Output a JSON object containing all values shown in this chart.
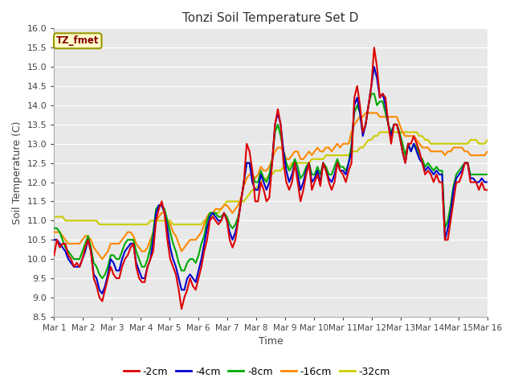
{
  "title": "Tonzi Soil Temperature Set D",
  "xlabel": "Time",
  "ylabel": "Soil Temperature (C)",
  "ylim": [
    8.5,
    16.0
  ],
  "yticks": [
    8.5,
    9.0,
    9.5,
    10.0,
    10.5,
    11.0,
    11.5,
    12.0,
    12.5,
    13.0,
    13.5,
    14.0,
    14.5,
    15.0,
    15.5,
    16.0
  ],
  "xtick_labels": [
    "Mar 1",
    "Mar 2",
    "Mar 3",
    "Mar 4",
    "Mar 5",
    "Mar 6",
    "Mar 7",
    "Mar 8",
    "Mar 9",
    "Mar 10",
    "Mar 11",
    "Mar 12",
    "Mar 13",
    "Mar 14",
    "Mar 15",
    "Mar 16"
  ],
  "legend_label": "TZ_fmet",
  "legend_box_facecolor": "#ffffcc",
  "legend_box_edgecolor": "#999900",
  "legend_text_color": "#880000",
  "fig_facecolor": "#ffffff",
  "plot_facecolor": "#e8e8e8",
  "grid_color": "#ffffff",
  "series_colors": {
    "-2cm": "#dd0000",
    "-4cm": "#0000cc",
    "-8cm": "#00aa00",
    "-16cm": "#ff8800",
    "-32cm": "#cccc00"
  },
  "t_days": 15,
  "data_2cm": [
    10.1,
    10.5,
    10.3,
    10.4,
    10.4,
    10.1,
    10.0,
    9.8,
    9.9,
    9.8,
    10.0,
    10.3,
    10.5,
    10.2,
    9.5,
    9.3,
    9.0,
    8.9,
    9.2,
    9.5,
    9.8,
    9.6,
    9.5,
    9.5,
    9.8,
    10.0,
    10.1,
    10.3,
    10.4,
    9.8,
    9.5,
    9.4,
    9.4,
    9.8,
    10.0,
    10.2,
    11.0,
    11.3,
    11.5,
    11.2,
    10.5,
    10.0,
    9.8,
    9.6,
    9.2,
    8.7,
    9.0,
    9.2,
    9.5,
    9.3,
    9.2,
    9.5,
    9.8,
    10.2,
    10.5,
    11.0,
    11.1,
    11.0,
    10.9,
    11.0,
    11.2,
    11.0,
    10.5,
    10.3,
    10.5,
    11.0,
    11.5,
    12.0,
    13.0,
    12.8,
    12.3,
    11.5,
    11.5,
    12.0,
    11.8,
    11.5,
    11.6,
    12.5,
    13.5,
    13.9,
    13.5,
    12.5,
    12.0,
    11.8,
    12.0,
    12.5,
    12.0,
    11.5,
    11.8,
    12.2,
    12.5,
    11.8,
    12.0,
    12.2,
    11.9,
    12.5,
    12.3,
    12.0,
    11.8,
    12.0,
    12.5,
    12.3,
    12.2,
    12.0,
    12.3,
    12.5,
    14.2,
    14.5,
    14.0,
    13.3,
    13.5,
    14.0,
    14.5,
    15.5,
    15.0,
    14.2,
    14.3,
    14.2,
    13.5,
    13.0,
    13.5,
    13.5,
    13.2,
    12.8,
    12.5,
    13.0,
    13.0,
    13.2,
    13.0,
    12.8,
    12.5,
    12.2,
    12.3,
    12.2,
    12.0,
    12.2,
    12.0,
    12.0,
    10.5,
    10.5,
    11.0,
    11.5,
    12.0,
    12.0,
    12.2,
    12.5,
    12.5,
    12.0,
    12.0,
    12.0,
    11.8,
    12.0,
    11.8,
    11.8
  ],
  "data_4cm": [
    10.5,
    10.5,
    10.4,
    10.3,
    10.2,
    10.0,
    9.9,
    9.8,
    9.8,
    9.8,
    10.0,
    10.2,
    10.5,
    10.2,
    9.6,
    9.5,
    9.2,
    9.1,
    9.3,
    9.6,
    10.0,
    9.9,
    9.7,
    9.7,
    10.0,
    10.2,
    10.3,
    10.4,
    10.4,
    9.9,
    9.7,
    9.5,
    9.5,
    9.8,
    10.0,
    10.5,
    11.2,
    11.4,
    11.4,
    11.2,
    10.8,
    10.3,
    10.0,
    9.8,
    9.5,
    9.2,
    9.2,
    9.5,
    9.6,
    9.5,
    9.4,
    9.7,
    10.0,
    10.4,
    10.8,
    11.1,
    11.2,
    11.1,
    11.0,
    11.0,
    11.2,
    11.0,
    10.7,
    10.5,
    10.7,
    11.0,
    11.5,
    12.0,
    12.5,
    12.5,
    12.0,
    11.8,
    11.8,
    12.2,
    12.0,
    11.8,
    12.0,
    12.5,
    13.5,
    13.8,
    13.5,
    12.8,
    12.3,
    12.0,
    12.2,
    12.5,
    12.2,
    11.8,
    12.0,
    12.3,
    12.5,
    12.0,
    12.1,
    12.3,
    12.0,
    12.5,
    12.3,
    12.1,
    12.0,
    12.2,
    12.5,
    12.3,
    12.3,
    12.2,
    12.5,
    12.8,
    14.0,
    14.2,
    13.8,
    13.2,
    13.5,
    14.0,
    14.5,
    15.0,
    14.7,
    14.2,
    14.3,
    14.0,
    13.5,
    13.2,
    13.5,
    13.5,
    13.2,
    12.8,
    12.5,
    13.0,
    12.8,
    13.0,
    12.8,
    12.6,
    12.5,
    12.3,
    12.4,
    12.3,
    12.2,
    12.3,
    12.2,
    12.2,
    10.5,
    10.8,
    11.2,
    11.8,
    12.1,
    12.2,
    12.3,
    12.5,
    12.5,
    12.1,
    12.1,
    12.0,
    12.0,
    12.1,
    12.0,
    12.0
  ],
  "data_8cm": [
    10.8,
    10.8,
    10.7,
    10.5,
    10.3,
    10.2,
    10.1,
    10.0,
    10.0,
    10.0,
    10.2,
    10.4,
    10.6,
    10.3,
    9.9,
    9.8,
    9.6,
    9.5,
    9.6,
    9.8,
    10.1,
    10.1,
    10.0,
    10.0,
    10.2,
    10.4,
    10.5,
    10.5,
    10.5,
    10.2,
    10.0,
    9.8,
    9.8,
    10.0,
    10.3,
    10.7,
    11.3,
    11.4,
    11.4,
    11.3,
    11.0,
    10.7,
    10.4,
    10.2,
    9.9,
    9.7,
    9.7,
    9.9,
    10.0,
    10.0,
    9.9,
    10.1,
    10.4,
    10.6,
    11.0,
    11.2,
    11.2,
    11.2,
    11.1,
    11.1,
    11.2,
    11.1,
    10.9,
    10.8,
    10.9,
    11.1,
    11.5,
    12.0,
    12.5,
    12.5,
    12.2,
    12.0,
    12.0,
    12.3,
    12.1,
    12.0,
    12.2,
    12.6,
    13.3,
    13.5,
    13.2,
    12.8,
    12.5,
    12.3,
    12.4,
    12.6,
    12.4,
    12.1,
    12.2,
    12.4,
    12.5,
    12.2,
    12.2,
    12.4,
    12.2,
    12.5,
    12.4,
    12.2,
    12.2,
    12.4,
    12.6,
    12.4,
    12.4,
    12.3,
    12.5,
    13.0,
    13.8,
    14.0,
    13.8,
    13.3,
    13.5,
    14.0,
    14.3,
    14.3,
    14.0,
    14.1,
    14.1,
    13.8,
    13.5,
    13.3,
    13.5,
    13.5,
    13.3,
    13.0,
    12.7,
    13.0,
    12.8,
    13.0,
    12.9,
    12.7,
    12.6,
    12.4,
    12.5,
    12.4,
    12.3,
    12.4,
    12.3,
    12.3,
    10.8,
    11.0,
    11.4,
    11.9,
    12.2,
    12.3,
    12.4,
    12.5,
    12.5,
    12.2,
    12.2,
    12.2,
    12.2,
    12.2,
    12.2,
    12.2
  ],
  "data_16cm": [
    10.7,
    10.7,
    10.7,
    10.6,
    10.5,
    10.4,
    10.4,
    10.4,
    10.4,
    10.4,
    10.5,
    10.6,
    10.6,
    10.5,
    10.3,
    10.2,
    10.1,
    10.0,
    10.1,
    10.2,
    10.4,
    10.4,
    10.4,
    10.4,
    10.5,
    10.6,
    10.7,
    10.7,
    10.6,
    10.4,
    10.3,
    10.2,
    10.2,
    10.3,
    10.5,
    10.7,
    11.0,
    11.1,
    11.2,
    11.2,
    11.0,
    10.9,
    10.7,
    10.6,
    10.4,
    10.2,
    10.3,
    10.4,
    10.5,
    10.5,
    10.5,
    10.6,
    10.7,
    10.9,
    11.1,
    11.2,
    11.2,
    11.3,
    11.3,
    11.3,
    11.4,
    11.4,
    11.3,
    11.2,
    11.3,
    11.4,
    11.6,
    11.9,
    12.1,
    12.2,
    12.2,
    12.1,
    12.2,
    12.4,
    12.3,
    12.3,
    12.4,
    12.6,
    12.8,
    12.9,
    12.9,
    12.8,
    12.6,
    12.6,
    12.7,
    12.8,
    12.8,
    12.6,
    12.6,
    12.7,
    12.8,
    12.7,
    12.8,
    12.9,
    12.8,
    12.8,
    12.9,
    12.9,
    12.8,
    12.9,
    13.0,
    12.9,
    13.0,
    13.0,
    13.0,
    13.3,
    13.5,
    13.6,
    13.7,
    13.7,
    13.8,
    13.8,
    13.8,
    13.8,
    13.8,
    13.7,
    13.7,
    13.7,
    13.7,
    13.7,
    13.7,
    13.7,
    13.5,
    13.3,
    13.2,
    13.2,
    13.2,
    13.2,
    13.1,
    13.0,
    12.9,
    12.9,
    12.9,
    12.8,
    12.8,
    12.8,
    12.8,
    12.8,
    12.7,
    12.8,
    12.8,
    12.9,
    12.9,
    12.9,
    12.9,
    12.8,
    12.8,
    12.7,
    12.7,
    12.7,
    12.7,
    12.7,
    12.7,
    12.8
  ],
  "data_32cm": [
    11.1,
    11.1,
    11.1,
    11.1,
    11.0,
    11.0,
    11.0,
    11.0,
    11.0,
    11.0,
    11.0,
    11.0,
    11.0,
    11.0,
    11.0,
    11.0,
    10.9,
    10.9,
    10.9,
    10.9,
    10.9,
    10.9,
    10.9,
    10.9,
    10.9,
    10.9,
    10.9,
    10.9,
    10.9,
    10.9,
    10.9,
    10.9,
    10.9,
    10.9,
    11.0,
    11.0,
    11.0,
    11.0,
    11.0,
    11.0,
    11.0,
    11.0,
    10.9,
    10.9,
    10.9,
    10.9,
    10.9,
    10.9,
    10.9,
    10.9,
    10.9,
    10.9,
    10.9,
    11.0,
    11.0,
    11.1,
    11.1,
    11.2,
    11.2,
    11.3,
    11.4,
    11.5,
    11.5,
    11.5,
    11.5,
    11.5,
    11.5,
    11.5,
    11.6,
    11.7,
    11.8,
    11.8,
    11.9,
    12.0,
    12.1,
    12.1,
    12.2,
    12.2,
    12.3,
    12.3,
    12.3,
    12.4,
    12.4,
    12.4,
    12.5,
    12.5,
    12.5,
    12.5,
    12.5,
    12.5,
    12.5,
    12.6,
    12.6,
    12.6,
    12.6,
    12.6,
    12.7,
    12.7,
    12.7,
    12.7,
    12.7,
    12.7,
    12.7,
    12.7,
    12.7,
    12.8,
    12.8,
    12.8,
    12.9,
    12.9,
    13.0,
    13.1,
    13.1,
    13.2,
    13.2,
    13.3,
    13.3,
    13.3,
    13.3,
    13.3,
    13.3,
    13.3,
    13.3,
    13.3,
    13.3,
    13.3,
    13.3,
    13.3,
    13.3,
    13.2,
    13.2,
    13.1,
    13.1,
    13.0,
    13.0,
    13.0,
    13.0,
    13.0,
    13.0,
    13.0,
    13.0,
    13.0,
    13.0,
    13.0,
    13.0,
    13.0,
    13.0,
    13.1,
    13.1,
    13.1,
    13.0,
    13.0,
    13.0,
    13.1
  ]
}
